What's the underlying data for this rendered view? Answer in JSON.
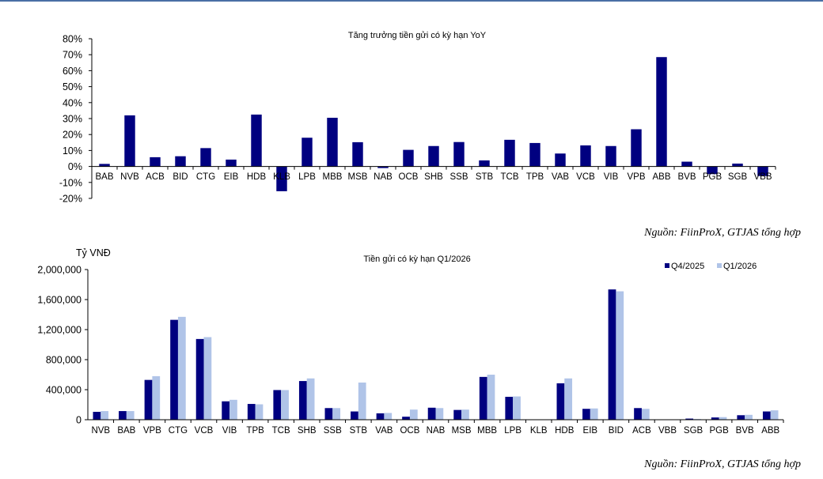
{
  "chart_data": [
    {
      "type": "bar",
      "title": "Tăng trưởng tiền gửi có kỳ hạn YoY",
      "xlabel": "",
      "ylabel": "",
      "ylim": [
        -0.2,
        0.8
      ],
      "y_ticks": [
        "80%",
        "70%",
        "60%",
        "50%",
        "40%",
        "30%",
        "20%",
        "10%",
        "0%",
        "-10%",
        "-20%"
      ],
      "y_tick_values": [
        0.8,
        0.7,
        0.6,
        0.5,
        0.4,
        0.3,
        0.2,
        0.1,
        0.0,
        -0.1,
        -0.2
      ],
      "categories": [
        "BAB",
        "NVB",
        "ACB",
        "BID",
        "CTG",
        "EIB",
        "HDB",
        "KLB",
        "LPB",
        "MBB",
        "MSB",
        "NAB",
        "OCB",
        "SHB",
        "SSB",
        "STB",
        "TCB",
        "TPB",
        "VAB",
        "VCB",
        "VIB",
        "VPB",
        "ABB",
        "BVB",
        "PGB",
        "SGB",
        "VBB"
      ],
      "values": [
        0.016,
        0.32,
        0.058,
        0.064,
        0.115,
        0.043,
        0.325,
        -0.155,
        0.18,
        0.305,
        0.152,
        -0.01,
        0.104,
        0.128,
        0.153,
        0.038,
        0.167,
        0.147,
        0.081,
        0.132,
        0.128,
        0.233,
        0.685,
        0.03,
        -0.048,
        0.018,
        -0.06
      ],
      "color": "#000080",
      "grid": false
    },
    {
      "type": "bar",
      "title": "Tiền gửi có kỳ hạn Q1/2026",
      "ylabel": "Tỷ VNĐ",
      "xlabel": "",
      "ylim": [
        0,
        2000000
      ],
      "y_ticks": [
        "2,000,000",
        "1,600,000",
        "1,200,000",
        "800,000",
        "400,000",
        "0"
      ],
      "y_tick_values": [
        2000000,
        1600000,
        1200000,
        800000,
        400000,
        0
      ],
      "legend_position": "top-right",
      "grid": false,
      "categories": [
        "NVB",
        "BAB",
        "VPB",
        "CTG",
        "VCB",
        "VIB",
        "TPB",
        "TCB",
        "SHB",
        "SSB",
        "STB",
        "VAB",
        "OCB",
        "NAB",
        "MSB",
        "MBB",
        "LPB",
        "KLB",
        "HDB",
        "EIB",
        "BID",
        "ACB",
        "VBB",
        "SGB",
        "PGB",
        "BVB",
        "ABB"
      ],
      "series": [
        {
          "name": "Q4/2025",
          "color": "#000080",
          "values": [
            105000,
            115000,
            530000,
            1330000,
            1075000,
            245000,
            210000,
            395000,
            515000,
            155000,
            110000,
            85000,
            40000,
            160000,
            130000,
            570000,
            305000,
            0,
            485000,
            145000,
            1735000,
            155000,
            0,
            15000,
            30000,
            60000,
            110000
          ]
        },
        {
          "name": "Q1/2026",
          "color": "#b0c4e8",
          "values": [
            115000,
            115000,
            580000,
            1370000,
            1100000,
            265000,
            205000,
            395000,
            550000,
            155000,
            495000,
            90000,
            135000,
            155000,
            135000,
            600000,
            310000,
            0,
            550000,
            150000,
            1710000,
            145000,
            0,
            10000,
            35000,
            65000,
            125000
          ]
        }
      ]
    }
  ],
  "sources": [
    "Nguồn: FiinProX, GTJAS tổng hợp",
    "Nguồn: FiinProX, GTJAS tổng hợp"
  ]
}
